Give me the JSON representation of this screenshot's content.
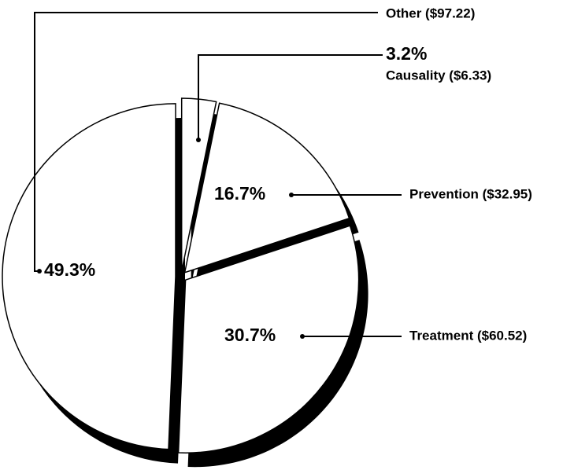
{
  "chart_data": {
    "type": "pie",
    "categories": [
      "Causality ($6.33)",
      "Prevention ($32.95)",
      "Treatment ($60.52)",
      "Other ($97.22)"
    ],
    "values": [
      3.2,
      16.7,
      30.7,
      49.3
    ],
    "value_labels": [
      "3.2%",
      "16.7%",
      "30.7%",
      "49.3%"
    ],
    "color": "#ffffff"
  }
}
